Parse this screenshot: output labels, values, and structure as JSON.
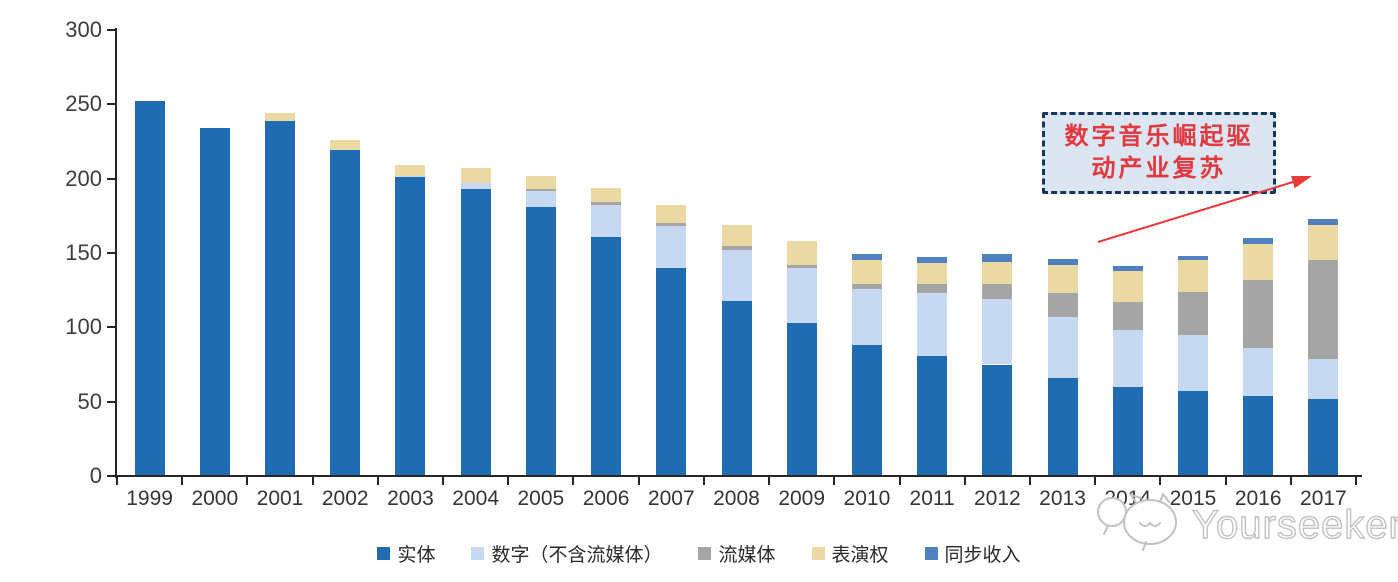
{
  "chart_data": {
    "type": "bar",
    "stacked": true,
    "title": "",
    "xlabel": "",
    "ylabel": "",
    "ylim": [
      0,
      300
    ],
    "yticks": [
      0,
      50,
      100,
      150,
      200,
      250,
      300
    ],
    "grid": false,
    "legend_position": "bottom",
    "axis_color": "#262626",
    "tick_label_color": "#3d3d3d",
    "categories": [
      "1999",
      "2000",
      "2001",
      "2002",
      "2003",
      "2004",
      "2005",
      "2006",
      "2007",
      "2008",
      "2009",
      "2010",
      "2011",
      "2012",
      "2013",
      "2014",
      "2015",
      "2016",
      "2017"
    ],
    "series": [
      {
        "name": "实体",
        "key": "physical",
        "color": "#1f6cb0",
        "values": [
          252,
          234,
          239,
          219,
          201,
          193,
          181,
          161,
          140,
          118,
          103,
          88,
          81,
          75,
          66,
          60,
          57,
          54,
          52
        ]
      },
      {
        "name": "数字（不含流媒体）",
        "key": "digital-excl-streaming",
        "color": "#c6d9f0",
        "values": [
          0,
          0,
          0,
          0,
          1,
          4,
          11,
          21,
          28,
          34,
          37,
          38,
          42,
          44,
          41,
          38,
          38,
          32,
          27
        ]
      },
      {
        "name": "流媒体",
        "key": "streaming",
        "color": "#a5a5a5",
        "values": [
          0,
          0,
          0,
          0,
          0,
          0,
          1,
          2,
          2,
          3,
          2,
          3,
          6,
          10,
          16,
          19,
          29,
          46,
          66
        ]
      },
      {
        "name": "表演权",
        "key": "performance-rights",
        "color": "#ead9a2",
        "values": [
          0,
          0,
          5,
          7,
          7,
          10,
          9,
          10,
          12,
          14,
          16,
          16,
          14,
          15,
          19,
          21,
          21,
          24,
          24
        ]
      },
      {
        "name": "同步收入",
        "key": "sync-revenue",
        "color": "#4e81bd",
        "values": [
          0,
          0,
          0,
          0,
          0,
          0,
          0,
          0,
          0,
          0,
          0,
          4,
          4,
          5,
          4,
          3,
          3,
          4,
          4
        ]
      }
    ]
  },
  "annotation": {
    "line1": "数字音乐崛起驱",
    "line2": "动产业复苏",
    "fill_color": "#dce6f2",
    "border_color": "#17365d",
    "text_color": "#e2383e",
    "arrow_color": "#e8393b"
  },
  "watermark": {
    "text": "Yourseeker",
    "logo": "speech-bubble-face-icon",
    "color": "#c2c2c2"
  }
}
